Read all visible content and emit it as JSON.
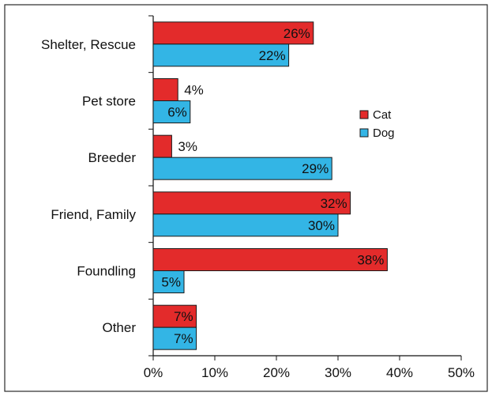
{
  "chart_data": {
    "type": "bar",
    "orientation": "horizontal",
    "categories": [
      "Shelter, Rescue",
      "Pet store",
      "Breeder",
      "Friend, Family",
      "Foundling",
      "Other"
    ],
    "series": [
      {
        "name": "Cat",
        "values": [
          26,
          4,
          3,
          32,
          38,
          7
        ],
        "labels": [
          "26%",
          "4%",
          "3%",
          "32%",
          "38%",
          "7%"
        ],
        "color": "#e32b2b"
      },
      {
        "name": "Dog",
        "values": [
          22,
          6,
          29,
          30,
          5,
          7
        ],
        "labels": [
          "22%",
          "6%",
          "29%",
          "30%",
          "5%",
          "7%"
        ],
        "color": "#33b5e5"
      }
    ],
    "x_ticks": [
      0,
      10,
      20,
      30,
      40,
      50
    ],
    "x_tick_labels": [
      "0%",
      "10%",
      "20%",
      "30%",
      "40%",
      "50%"
    ],
    "xlim": [
      0,
      50
    ],
    "title": "",
    "xlabel": "",
    "ylabel": "",
    "legend_position": "right",
    "grid": false,
    "border_color": "#000000"
  }
}
